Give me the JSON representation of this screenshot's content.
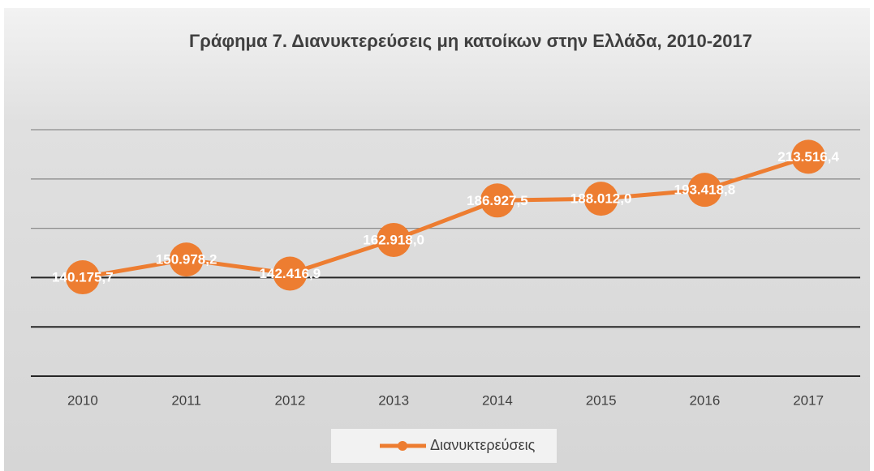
{
  "chart_data": {
    "type": "line",
    "title": "Γράφημα 7. Διανυκτερεύσεις μη κατοίκων στην Ελλάδα, 2010-2017",
    "categories": [
      "2010",
      "2011",
      "2012",
      "2013",
      "2014",
      "2015",
      "2016",
      "2017"
    ],
    "series": [
      {
        "name": "Διανυκτερεύσεις",
        "color": "#ed7d31",
        "values": [
          140175.7,
          150978.2,
          142416.9,
          162918.0,
          186927.5,
          188012.0,
          193418.8,
          213516.4
        ],
        "value_labels": [
          "140.175,7",
          "150.978,2",
          "142.416,9",
          "162.918,0",
          "186.927,5",
          "188.012,0",
          "193.418,8",
          "213.516,4"
        ]
      }
    ],
    "ylim": [
      80000,
      230000
    ],
    "yticks": [
      80000,
      110000,
      140000,
      170000,
      200000,
      230000
    ],
    "grid": true,
    "legend": "bottom"
  }
}
